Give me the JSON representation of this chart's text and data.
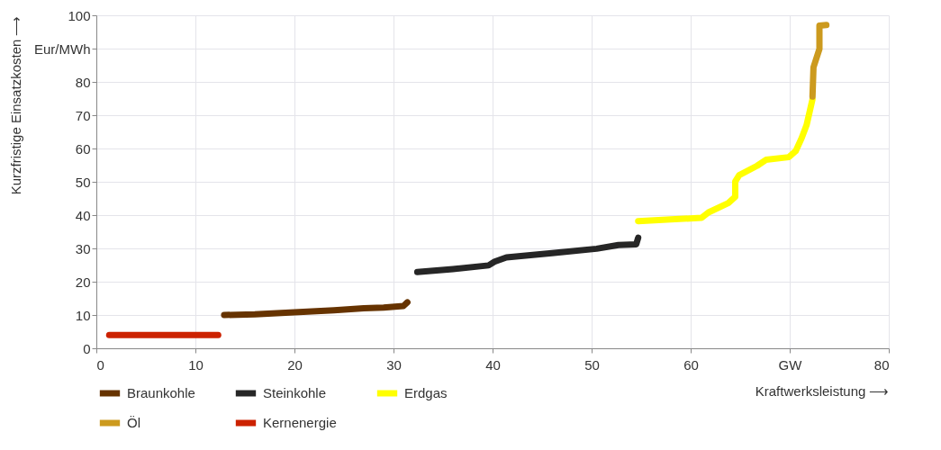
{
  "chart_data": {
    "type": "line",
    "xlabel": "Kraftwerksleistung ⟶",
    "ylabel": "Kurzfristige Einsatzkosten ⟶",
    "xlim": [
      0,
      80
    ],
    "xticks": [
      0,
      10,
      20,
      30,
      40,
      50,
      60,
      {
        "value": 70,
        "label": "GW"
      },
      80
    ],
    "ylim": [
      0,
      100
    ],
    "yticks": [
      0,
      10,
      20,
      30,
      40,
      50,
      60,
      70,
      80,
      {
        "value": 90,
        "label": "Eur/MWh"
      },
      100
    ],
    "grid": true,
    "legend": "bottom",
    "marker": "none",
    "line_style": "solid",
    "series": [
      {
        "name": "Braunkohle",
        "color": "#663300",
        "x": [
          12.9,
          16,
          20,
          24,
          27,
          29,
          31,
          31.4
        ],
        "values": [
          10,
          10.2,
          10.8,
          11.4,
          12,
          12.2,
          12.7,
          13.8
        ]
      },
      {
        "name": "Steinkohle",
        "color": "#262626",
        "x": [
          32.4,
          36,
          39.6,
          40.2,
          41.4,
          46,
          50.5,
          52.7,
          54.5,
          54.7
        ],
        "values": [
          22.9,
          23.8,
          24.9,
          26,
          27.3,
          28.6,
          29.9,
          31,
          31.2,
          33.2
        ]
      },
      {
        "name": "Erdgas",
        "color": "#ffff00",
        "x": [
          54.7,
          58,
          61.1,
          61.8,
          63.8,
          64.5,
          64.5,
          64.9,
          66.7,
          67.6,
          69.9,
          70.6,
          71.2,
          71.7,
          72.3
        ],
        "values": [
          38.2,
          38.7,
          39.2,
          40.8,
          43.6,
          45.5,
          50.1,
          52,
          54.8,
          56.6,
          57.4,
          59.2,
          63.1,
          67,
          74.8
        ]
      },
      {
        "name": "Öl",
        "color": "#cc9a1e",
        "x": [
          72.3,
          72.4,
          73.0,
          73.0,
          73.7
        ],
        "values": [
          75.6,
          84.4,
          89.9,
          96.9,
          97.1
        ]
      },
      {
        "name": "Kernenergie",
        "color": "#cc2200",
        "x": [
          1.3,
          6,
          12.3
        ],
        "values": [
          4,
          4,
          4
        ]
      }
    ]
  }
}
